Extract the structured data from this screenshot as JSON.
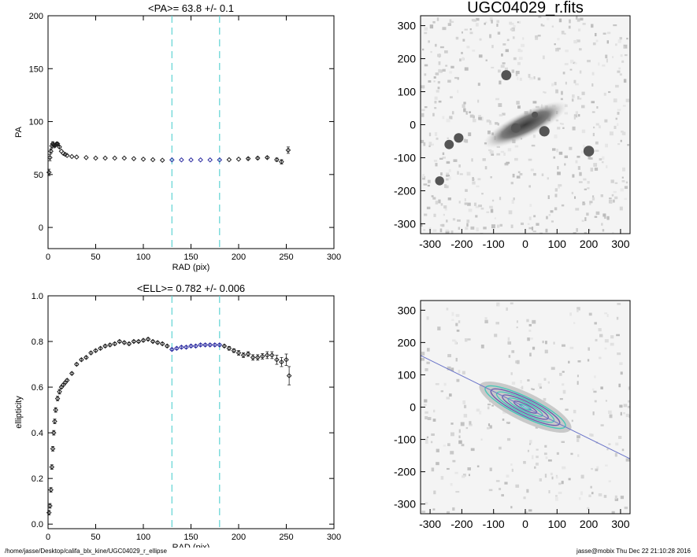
{
  "footer": {
    "path": "/home/jasse/Desktop/califa_blx_kine/UGC04029_r_ellipse",
    "user_timestamp": "jasse@mobix  Thu Dec 22 21:10:28 2016"
  },
  "colors": {
    "axes": "#000000",
    "marker": "#202020",
    "highlight_marker": "#2a2aa0",
    "guide_line": "#5fd3d3",
    "fit_line": "#6b75c9",
    "contour_teal": "#46c7b8",
    "contour_purple": "#6c5fae"
  },
  "chart_data": [
    {
      "type": "scatter",
      "title": "<PA>=  63.8 +/-   0.1",
      "xlabel": "RAD (pix)",
      "ylabel": "PA",
      "xlim": [
        0,
        300
      ],
      "ylim": [
        -20,
        200
      ],
      "xticks": [
        0,
        50,
        100,
        150,
        200,
        250,
        300
      ],
      "yticks": [
        0,
        50,
        100,
        150,
        200
      ],
      "vlines": [
        130,
        180
      ],
      "highlight_range": [
        130,
        180
      ],
      "grid": false,
      "x": [
        1,
        2,
        3,
        4,
        5,
        6,
        7,
        8,
        9,
        10,
        12,
        14,
        16,
        18,
        20,
        25,
        30,
        40,
        50,
        60,
        70,
        80,
        90,
        100,
        110,
        120,
        130,
        140,
        150,
        160,
        170,
        180,
        190,
        200,
        210,
        220,
        230,
        240,
        245,
        252
      ],
      "y": [
        52,
        66,
        72,
        77,
        79,
        78,
        77,
        78,
        79,
        79,
        76,
        72,
        70,
        69,
        68,
        67,
        66.5,
        66,
        65.5,
        65.5,
        65.5,
        65.5,
        65,
        64.5,
        64,
        63.5,
        63.8,
        63.8,
        63.8,
        63.8,
        63.8,
        63.8,
        64,
        64.5,
        65,
        65.5,
        66,
        64,
        62,
        73
      ],
      "yerr": [
        3,
        3,
        2,
        2,
        2,
        1,
        1,
        1,
        1,
        1,
        1,
        0.5,
        0.5,
        0.5,
        0.5,
        0.5,
        0.5,
        0.5,
        0.5,
        0.5,
        0.5,
        0.5,
        0.5,
        0.5,
        0.5,
        0.5,
        0.5,
        0.5,
        0.5,
        0.5,
        0.5,
        0.5,
        0.5,
        0.5,
        1,
        1,
        1,
        1.5,
        2,
        3
      ]
    },
    {
      "type": "scatter",
      "title": "<ELL>= 0.782 +/-  0.006",
      "xlabel": "RAD (pix)",
      "ylabel": "ellipticity",
      "xlim": [
        0,
        300
      ],
      "ylim": [
        -0.02,
        1.0
      ],
      "xticks": [
        0,
        50,
        100,
        150,
        200,
        250,
        300
      ],
      "yticks": [
        0.0,
        0.2,
        0.4,
        0.6,
        0.8,
        1.0
      ],
      "ytick_labels": [
        "0.0",
        "0.2",
        "0.4",
        "0.6",
        "0.8",
        "1.0"
      ],
      "vlines": [
        130,
        180
      ],
      "highlight_range": [
        130,
        180
      ],
      "grid": false,
      "x": [
        1,
        2,
        3,
        4,
        5,
        6,
        7,
        8,
        10,
        12,
        14,
        16,
        18,
        20,
        25,
        30,
        35,
        40,
        45,
        50,
        55,
        60,
        65,
        70,
        75,
        80,
        85,
        90,
        95,
        100,
        105,
        110,
        115,
        120,
        125,
        130,
        135,
        140,
        145,
        150,
        155,
        160,
        165,
        170,
        175,
        180,
        185,
        190,
        195,
        200,
        205,
        210,
        215,
        220,
        225,
        230,
        235,
        240,
        245,
        250,
        253
      ],
      "y": [
        0.05,
        0.08,
        0.15,
        0.25,
        0.33,
        0.4,
        0.45,
        0.5,
        0.55,
        0.58,
        0.6,
        0.61,
        0.62,
        0.63,
        0.66,
        0.7,
        0.72,
        0.73,
        0.75,
        0.76,
        0.77,
        0.78,
        0.785,
        0.79,
        0.8,
        0.795,
        0.79,
        0.8,
        0.8,
        0.805,
        0.81,
        0.8,
        0.795,
        0.79,
        0.78,
        0.765,
        0.77,
        0.775,
        0.775,
        0.78,
        0.78,
        0.785,
        0.785,
        0.785,
        0.785,
        0.785,
        0.78,
        0.77,
        0.76,
        0.75,
        0.74,
        0.745,
        0.73,
        0.73,
        0.735,
        0.74,
        0.74,
        0.72,
        0.71,
        0.72,
        0.65
      ],
      "yerr": [
        0.01,
        0.01,
        0.01,
        0.01,
        0.01,
        0.01,
        0.01,
        0.01,
        0.01,
        0.01,
        0.005,
        0.005,
        0.005,
        0.005,
        0.005,
        0.005,
        0.005,
        0.005,
        0.005,
        0.005,
        0.005,
        0.005,
        0.005,
        0.005,
        0.005,
        0.005,
        0.005,
        0.005,
        0.005,
        0.005,
        0.005,
        0.005,
        0.005,
        0.005,
        0.005,
        0.005,
        0.005,
        0.005,
        0.005,
        0.005,
        0.005,
        0.005,
        0.005,
        0.005,
        0.005,
        0.005,
        0.005,
        0.008,
        0.008,
        0.01,
        0.01,
        0.01,
        0.012,
        0.012,
        0.012,
        0.015,
        0.015,
        0.02,
        0.02,
        0.025,
        0.04
      ]
    },
    {
      "type": "heatmap",
      "title": "UGC04029_r.fits",
      "xlim": [
        -330,
        330
      ],
      "ylim": [
        -330,
        330
      ],
      "xticks": [
        -300,
        -200,
        -100,
        0,
        100,
        200,
        300
      ],
      "yticks": [
        -300,
        -200,
        -100,
        0,
        100,
        200,
        300
      ],
      "colormap": "inverted greyscale",
      "galaxy": {
        "center": [
          0,
          0
        ],
        "position_angle_deg": 63.8,
        "semi_major": 140,
        "axis_ratio": 0.22
      },
      "point_sources": [
        [
          -210,
          -40
        ],
        [
          -240,
          -60
        ],
        [
          60,
          -20
        ],
        [
          30,
          30
        ],
        [
          -60,
          150
        ],
        [
          200,
          -80
        ],
        [
          -270,
          -170
        ],
        [
          -30,
          -10
        ]
      ]
    },
    {
      "type": "heatmap",
      "title": "",
      "xlim": [
        -330,
        330
      ],
      "ylim": [
        -330,
        330
      ],
      "xticks": [
        -300,
        -200,
        -100,
        0,
        100,
        200,
        300
      ],
      "yticks": [
        -300,
        -200,
        -100,
        0,
        100,
        200,
        300
      ],
      "colormap": "inverted greyscale with fitted isophote contours",
      "isophote_semi_major": [
        20,
        40,
        60,
        80,
        100,
        120,
        140
      ],
      "isophote_axis_ratio": 0.22,
      "major_axis_line": {
        "position_angle_deg": 63.8,
        "from": [
          -330,
          160
        ],
        "to": [
          330,
          -160
        ]
      }
    }
  ]
}
